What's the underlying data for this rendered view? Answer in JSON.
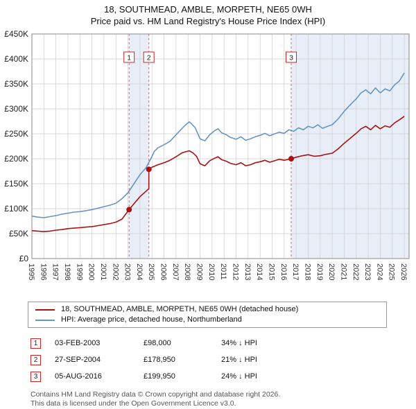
{
  "header": {
    "title": "18, SOUTHMEAD, AMBLE, MORPETH, NE65 0WH",
    "subtitle": "Price paid vs. HM Land Registry's House Price Index (HPI)"
  },
  "chart_data": {
    "type": "line",
    "xlim": [
      1995,
      2026.4
    ],
    "ylim": [
      0,
      450000
    ],
    "grid": true,
    "legend_position": "bottom",
    "x_ticks": [
      1995,
      1996,
      1997,
      1998,
      1999,
      2000,
      2001,
      2002,
      2003,
      2004,
      2005,
      2006,
      2007,
      2008,
      2009,
      2010,
      2011,
      2012,
      2013,
      2014,
      2015,
      2016,
      2017,
      2018,
      2019,
      2020,
      2021,
      2022,
      2023,
      2024,
      2025,
      2026
    ],
    "y_ticks": [
      {
        "v": 0,
        "label": "£0"
      },
      {
        "v": 50000,
        "label": "£50K"
      },
      {
        "v": 100000,
        "label": "£100K"
      },
      {
        "v": 150000,
        "label": "£150K"
      },
      {
        "v": 200000,
        "label": "£200K"
      },
      {
        "v": 250000,
        "label": "£250K"
      },
      {
        "v": 300000,
        "label": "£300K"
      },
      {
        "v": 350000,
        "label": "£350K"
      },
      {
        "v": 400000,
        "label": "£400K"
      },
      {
        "v": 450000,
        "label": "£450K"
      }
    ],
    "colors": {
      "property": "#aa1111",
      "hpi": "#6694c4",
      "shade": "rgba(110,150,210,0.16)",
      "marker_line": "#cc6677",
      "grid": "#cccccc",
      "axis": "#888888"
    },
    "series": [
      {
        "name": "18, SOUTHMEAD, AMBLE, MORPETH, NE65 0WH (detached house)",
        "color": "#aa1111",
        "points": [
          [
            1995,
            56000
          ],
          [
            1995.5,
            55000
          ],
          [
            1996,
            54000
          ],
          [
            1996.5,
            55000
          ],
          [
            1997,
            57000
          ],
          [
            1997.5,
            58000
          ],
          [
            1998,
            60000
          ],
          [
            1998.5,
            61000
          ],
          [
            1999,
            62000
          ],
          [
            1999.5,
            63000
          ],
          [
            2000,
            64000
          ],
          [
            2000.5,
            66000
          ],
          [
            2001,
            68000
          ],
          [
            2001.5,
            70000
          ],
          [
            2002,
            73000
          ],
          [
            2002.5,
            79000
          ],
          [
            2003.09,
            98000
          ],
          [
            2003.5,
            110000
          ],
          [
            2004,
            124000
          ],
          [
            2004.5,
            135000
          ],
          [
            2004.74,
            140000
          ],
          [
            2004.74,
            178950
          ],
          [
            2005,
            183000
          ],
          [
            2005.5,
            188000
          ],
          [
            2006,
            192000
          ],
          [
            2006.5,
            197000
          ],
          [
            2007,
            204000
          ],
          [
            2007.5,
            212000
          ],
          [
            2008.1,
            216000
          ],
          [
            2008.4,
            212000
          ],
          [
            2008.7,
            205000
          ],
          [
            2009,
            190000
          ],
          [
            2009.4,
            186000
          ],
          [
            2009.8,
            196000
          ],
          [
            2010.2,
            201000
          ],
          [
            2010.5,
            204000
          ],
          [
            2010.8,
            198000
          ],
          [
            2011.2,
            195000
          ],
          [
            2011.5,
            191000
          ],
          [
            2012,
            188000
          ],
          [
            2012.4,
            192000
          ],
          [
            2012.8,
            186000
          ],
          [
            2013.2,
            188000
          ],
          [
            2013.6,
            192000
          ],
          [
            2014,
            194000
          ],
          [
            2014.4,
            197000
          ],
          [
            2014.8,
            193000
          ],
          [
            2015.2,
            196000
          ],
          [
            2015.6,
            199000
          ],
          [
            2016,
            197000
          ],
          [
            2016.59,
            199950
          ],
          [
            2017,
            203000
          ],
          [
            2017.5,
            206000
          ],
          [
            2018,
            208000
          ],
          [
            2018.5,
            205000
          ],
          [
            2019,
            206000
          ],
          [
            2019.5,
            209000
          ],
          [
            2020,
            211000
          ],
          [
            2020.5,
            220000
          ],
          [
            2021,
            231000
          ],
          [
            2021.5,
            241000
          ],
          [
            2022,
            251000
          ],
          [
            2022.4,
            260000
          ],
          [
            2022.8,
            265000
          ],
          [
            2023.2,
            258000
          ],
          [
            2023.6,
            267000
          ],
          [
            2024,
            260000
          ],
          [
            2024.4,
            266000
          ],
          [
            2024.8,
            263000
          ],
          [
            2025.2,
            272000
          ],
          [
            2025.6,
            278000
          ],
          [
            2026,
            285000
          ]
        ]
      },
      {
        "name": "HPI: Average price, detached house, Northumberland",
        "color": "#6694c4",
        "points": [
          [
            1995,
            85000
          ],
          [
            1995.5,
            83000
          ],
          [
            1996,
            82000
          ],
          [
            1996.5,
            84000
          ],
          [
            1997,
            86000
          ],
          [
            1997.5,
            89000
          ],
          [
            1998,
            91000
          ],
          [
            1998.5,
            93000
          ],
          [
            1999,
            94000
          ],
          [
            1999.5,
            96000
          ],
          [
            2000,
            98000
          ],
          [
            2000.5,
            101000
          ],
          [
            2001,
            104000
          ],
          [
            2001.5,
            107000
          ],
          [
            2002,
            111000
          ],
          [
            2002.5,
            120000
          ],
          [
            2003,
            132000
          ],
          [
            2003.5,
            150000
          ],
          [
            2004,
            168000
          ],
          [
            2004.5,
            182000
          ],
          [
            2004.9,
            200000
          ],
          [
            2005.2,
            215000
          ],
          [
            2005.5,
            222000
          ],
          [
            2006,
            228000
          ],
          [
            2006.5,
            235000
          ],
          [
            2007,
            248000
          ],
          [
            2007.4,
            258000
          ],
          [
            2007.8,
            268000
          ],
          [
            2008.1,
            274000
          ],
          [
            2008.3,
            270000
          ],
          [
            2008.6,
            262000
          ],
          [
            2009,
            240000
          ],
          [
            2009.4,
            236000
          ],
          [
            2009.8,
            248000
          ],
          [
            2010.2,
            256000
          ],
          [
            2010.5,
            260000
          ],
          [
            2010.8,
            252000
          ],
          [
            2011.2,
            248000
          ],
          [
            2011.5,
            243000
          ],
          [
            2012,
            239000
          ],
          [
            2012.4,
            244000
          ],
          [
            2012.8,
            237000
          ],
          [
            2013.2,
            240000
          ],
          [
            2013.6,
            244000
          ],
          [
            2014,
            247000
          ],
          [
            2014.4,
            251000
          ],
          [
            2014.8,
            246000
          ],
          [
            2015.2,
            250000
          ],
          [
            2015.6,
            253000
          ],
          [
            2016,
            251000
          ],
          [
            2016.4,
            258000
          ],
          [
            2016.8,
            255000
          ],
          [
            2017.2,
            262000
          ],
          [
            2017.6,
            258000
          ],
          [
            2018,
            265000
          ],
          [
            2018.4,
            262000
          ],
          [
            2018.8,
            268000
          ],
          [
            2019.2,
            261000
          ],
          [
            2019.6,
            265000
          ],
          [
            2020,
            268000
          ],
          [
            2020.5,
            280000
          ],
          [
            2021,
            295000
          ],
          [
            2021.5,
            308000
          ],
          [
            2022,
            320000
          ],
          [
            2022.4,
            332000
          ],
          [
            2022.8,
            338000
          ],
          [
            2023.2,
            330000
          ],
          [
            2023.6,
            342000
          ],
          [
            2024,
            332000
          ],
          [
            2024.4,
            340000
          ],
          [
            2024.8,
            336000
          ],
          [
            2025.2,
            348000
          ],
          [
            2025.6,
            356000
          ],
          [
            2026,
            372000
          ]
        ]
      }
    ],
    "sale_markers": [
      {
        "label": "1",
        "x": 2003.09,
        "price": 98000
      },
      {
        "label": "2",
        "x": 2004.74,
        "price": 178950
      },
      {
        "label": "3",
        "x": 2016.59,
        "price": 199950
      }
    ],
    "shaded_regions": [
      [
        2003.09,
        2004.74
      ],
      [
        2016.59,
        2026.4
      ]
    ]
  },
  "legend": {
    "items": [
      {
        "label": "18, SOUTHMEAD, AMBLE, MORPETH, NE65 0WH (detached house)",
        "color": "#aa1111"
      },
      {
        "label": "HPI: Average price, detached house, Northumberland",
        "color": "#6694c4"
      }
    ]
  },
  "sales": [
    {
      "num": "1",
      "date": "03-FEB-2003",
      "price": "£98,000",
      "vs_hpi": "34% ↓ HPI"
    },
    {
      "num": "2",
      "date": "27-SEP-2004",
      "price": "£178,950",
      "vs_hpi": "21% ↓ HPI"
    },
    {
      "num": "3",
      "date": "05-AUG-2016",
      "price": "£199,950",
      "vs_hpi": "24% ↓ HPI"
    }
  ],
  "footer": {
    "line1": "Contains HM Land Registry data © Crown copyright and database right 2026.",
    "line2": "This data is licensed under the Open Government Licence v3.0."
  }
}
